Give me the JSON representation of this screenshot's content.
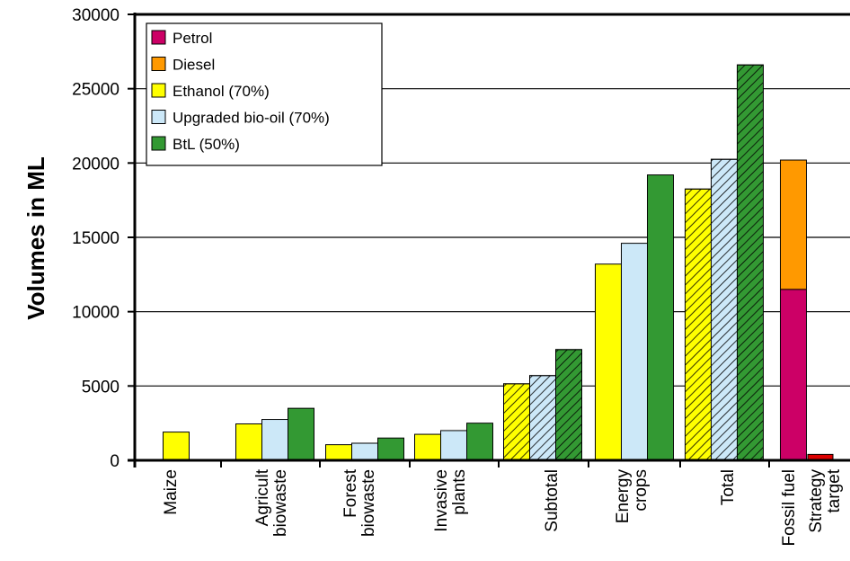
{
  "chart_data": {
    "type": "bar",
    "ylabel": "Volumes in ML",
    "xlabel": "",
    "ylim": [
      0,
      30000
    ],
    "yticks": [
      0,
      5000,
      10000,
      15000,
      20000,
      25000,
      30000
    ],
    "grid": "horizontal",
    "legend_position": "top-left",
    "categories": [
      [
        "Maize"
      ],
      [
        "Agricult",
        "biowaste"
      ],
      [
        "Forest",
        "biowaste"
      ],
      [
        "Invasive",
        "plants"
      ],
      [
        "Subtotal"
      ],
      [
        "Energy",
        "crops"
      ],
      [
        "Total"
      ],
      [
        "Fossil fuel"
      ],
      [
        "Strategy",
        "target"
      ]
    ],
    "series": [
      {
        "name": "Ethanol (70%)",
        "key": "ethanol",
        "color": "#ffff00",
        "values": [
          1900,
          2450,
          1050,
          1750,
          5150,
          13200,
          18250,
          null,
          null
        ]
      },
      {
        "name": "Upgraded bio-oil (70%)",
        "key": "biooil",
        "color": "#cce8f8",
        "values": [
          null,
          2750,
          1150,
          2000,
          5700,
          14600,
          20250,
          null,
          null
        ]
      },
      {
        "name": "BtL (50%)",
        "key": "btl",
        "color": "#339933",
        "values": [
          null,
          3500,
          1500,
          2500,
          7450,
          19200,
          26600,
          null,
          null
        ]
      }
    ],
    "hatched_categories": [
      4,
      6
    ],
    "stacked": {
      "category": 7,
      "segments": [
        {
          "name": "Petrol",
          "color": "#cc0066",
          "value": 11500
        },
        {
          "name": "Diesel",
          "color": "#ff9900",
          "value": 8700
        }
      ]
    },
    "target": {
      "category": 8,
      "value": 400,
      "color": "#dd0000"
    },
    "legend": [
      {
        "label": "Petrol",
        "color": "#cc0066"
      },
      {
        "label": "Diesel",
        "color": "#ff9900"
      },
      {
        "label": "Ethanol (70%)",
        "color": "#ffff00"
      },
      {
        "label": "Upgraded bio-oil (70%)",
        "color": "#cce8f8"
      },
      {
        "label": "BtL (50%)",
        "color": "#339933"
      }
    ]
  }
}
